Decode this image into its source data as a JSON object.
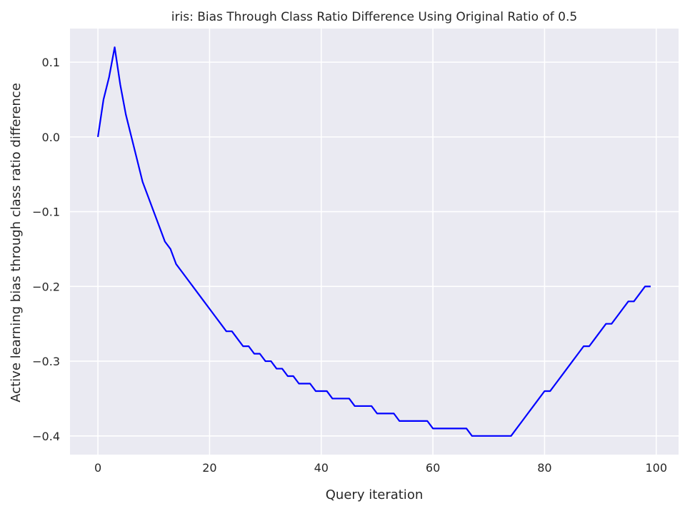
{
  "chart_data": {
    "type": "line",
    "title": "iris: Bias Through Class Ratio Difference Using Original Ratio of 0.5",
    "xlabel": "Query iteration",
    "ylabel": "Active learning bias through class ratio difference",
    "xlim": [
      -5,
      104
    ],
    "ylim": [
      -0.425,
      0.145
    ],
    "xticks": [
      0,
      20,
      40,
      60,
      80,
      100
    ],
    "yticks": [
      0.1,
      0.0,
      -0.1,
      -0.2,
      -0.3,
      -0.4
    ],
    "ytick_labels": [
      "0.1",
      "0.0",
      "−0.1",
      "−0.2",
      "−0.3",
      "−0.4"
    ],
    "grid": true,
    "series": [
      {
        "color": "#0000ff",
        "x": [
          0,
          1,
          2,
          3,
          4,
          5,
          6,
          7,
          8,
          9,
          10,
          11,
          12,
          13,
          14,
          15,
          16,
          17,
          18,
          19,
          20,
          21,
          22,
          23,
          24,
          25,
          26,
          27,
          28,
          29,
          30,
          31,
          32,
          33,
          34,
          35,
          36,
          37,
          38,
          39,
          40,
          41,
          42,
          43,
          44,
          45,
          46,
          47,
          48,
          49,
          50,
          51,
          52,
          53,
          54,
          55,
          56,
          57,
          58,
          59,
          60,
          61,
          62,
          63,
          64,
          65,
          66,
          67,
          68,
          69,
          70,
          71,
          72,
          73,
          74,
          75,
          76,
          77,
          78,
          79,
          80,
          81,
          82,
          83,
          84,
          85,
          86,
          87,
          88,
          89,
          90,
          91,
          92,
          93,
          94,
          95,
          96,
          97,
          98,
          99
        ],
        "y": [
          0.0,
          0.05,
          0.08,
          0.12,
          0.07,
          0.03,
          0.0,
          -0.03,
          -0.06,
          -0.08,
          -0.1,
          -0.12,
          -0.14,
          -0.15,
          -0.17,
          -0.18,
          -0.19,
          -0.2,
          -0.21,
          -0.22,
          -0.23,
          -0.24,
          -0.25,
          -0.26,
          -0.26,
          -0.27,
          -0.28,
          -0.28,
          -0.29,
          -0.29,
          -0.3,
          -0.3,
          -0.31,
          -0.31,
          -0.32,
          -0.32,
          -0.33,
          -0.33,
          -0.33,
          -0.34,
          -0.34,
          -0.34,
          -0.35,
          -0.35,
          -0.35,
          -0.35,
          -0.36,
          -0.36,
          -0.36,
          -0.36,
          -0.37,
          -0.37,
          -0.37,
          -0.37,
          -0.38,
          -0.38,
          -0.38,
          -0.38,
          -0.38,
          -0.38,
          -0.39,
          -0.39,
          -0.39,
          -0.39,
          -0.39,
          -0.39,
          -0.39,
          -0.4,
          -0.4,
          -0.4,
          -0.4,
          -0.4,
          -0.4,
          -0.4,
          -0.4,
          -0.39,
          -0.38,
          -0.37,
          -0.36,
          -0.35,
          -0.34,
          -0.34,
          -0.33,
          -0.32,
          -0.31,
          -0.3,
          -0.29,
          -0.28,
          -0.28,
          -0.27,
          -0.26,
          -0.25,
          -0.25,
          -0.24,
          -0.23,
          -0.22,
          -0.22,
          -0.21,
          -0.2,
          -0.2
        ]
      }
    ]
  }
}
